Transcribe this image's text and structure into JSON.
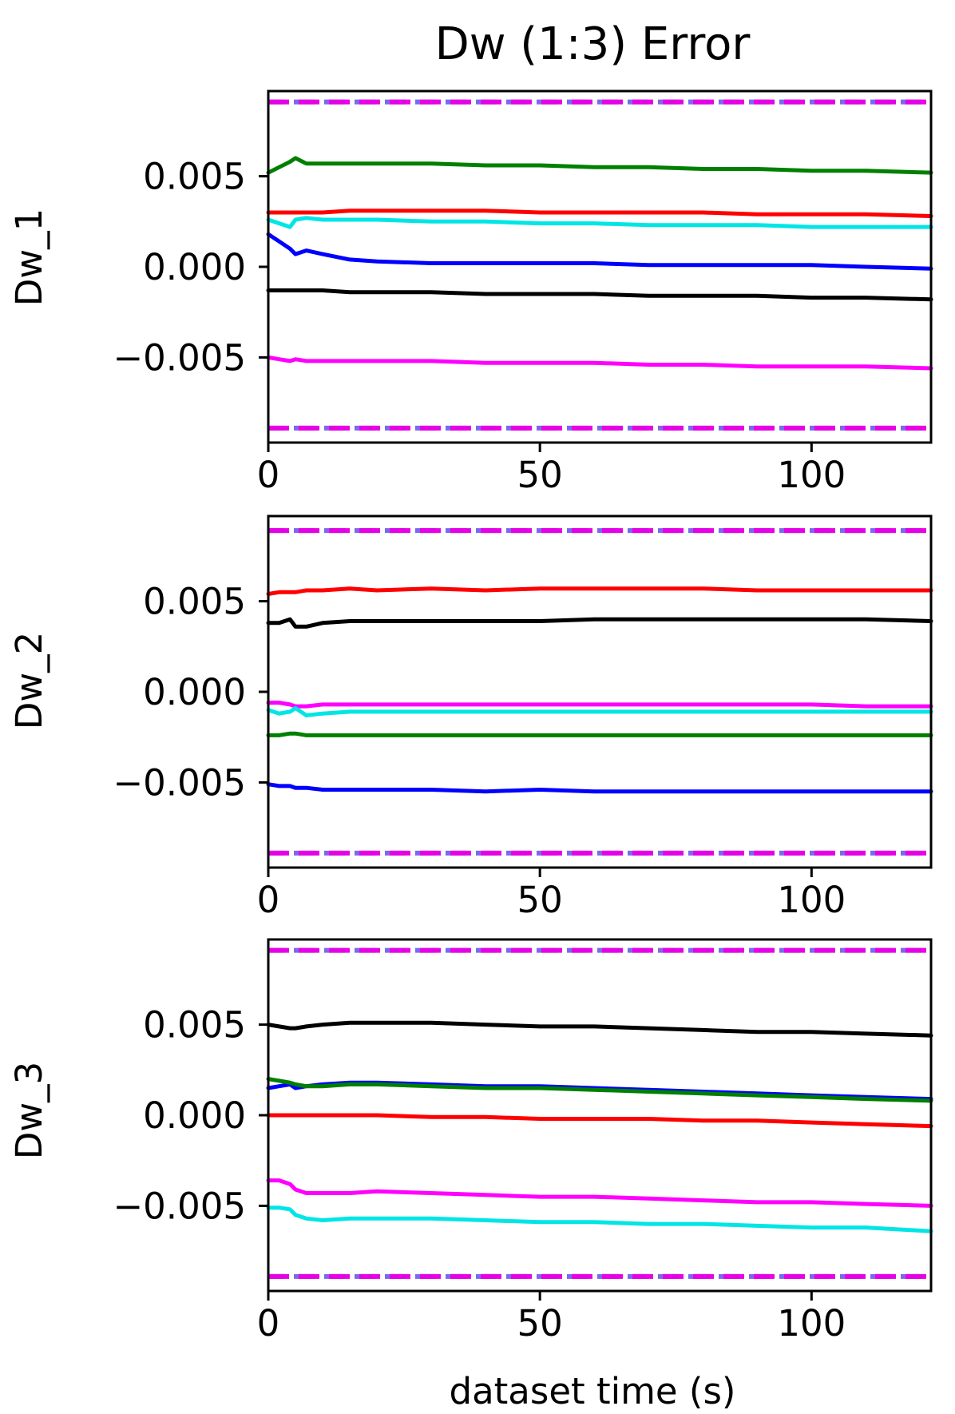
{
  "title": "Dw (1:3) Error",
  "xlabel": "dataset time (s)",
  "chart_data": [
    {
      "type": "line",
      "title": "Dw (1:3) Error",
      "ylabel": "Dw_1",
      "xlabel": "",
      "xlim": [
        0,
        122
      ],
      "ylim": [
        -0.0097,
        0.0097
      ],
      "xticks": [
        0,
        50,
        100
      ],
      "xtick_labels": [
        "0",
        "50",
        "100"
      ],
      "yticks": [
        -0.005,
        0.0,
        0.005
      ],
      "ytick_labels": [
        "−0.005",
        "0.000",
        "0.005"
      ],
      "grid": false,
      "x": [
        0,
        2,
        4,
        5,
        7,
        10,
        15,
        20,
        30,
        40,
        50,
        60,
        70,
        80,
        90,
        100,
        110,
        122
      ],
      "series": [
        {
          "color": "#008000",
          "values": [
            0.0052,
            0.0055,
            0.0058,
            0.006,
            0.0057,
            0.0057,
            0.0057,
            0.0057,
            0.0057,
            0.0056,
            0.0056,
            0.0055,
            0.0055,
            0.0054,
            0.0054,
            0.0053,
            0.0053,
            0.0052
          ]
        },
        {
          "color": "#ff0000",
          "values": [
            0.003,
            0.003,
            0.003,
            0.003,
            0.003,
            0.003,
            0.0031,
            0.0031,
            0.0031,
            0.0031,
            0.003,
            0.003,
            0.003,
            0.003,
            0.0029,
            0.0029,
            0.0029,
            0.0028
          ]
        },
        {
          "color": "#00e5e5",
          "values": [
            0.0026,
            0.0024,
            0.0022,
            0.0026,
            0.0027,
            0.0026,
            0.0026,
            0.0026,
            0.0025,
            0.0025,
            0.0024,
            0.0024,
            0.0023,
            0.0023,
            0.0023,
            0.0022,
            0.0022,
            0.0022
          ]
        },
        {
          "color": "#0000ff",
          "values": [
            0.0018,
            0.0014,
            0.001,
            0.0007,
            0.0009,
            0.0007,
            0.0004,
            0.0003,
            0.0002,
            0.0002,
            0.0002,
            0.0002,
            0.0001,
            0.0001,
            0.0001,
            0.0001,
            0.0,
            -0.0001
          ]
        },
        {
          "color": "#000000",
          "values": [
            -0.0013,
            -0.0013,
            -0.0013,
            -0.0013,
            -0.0013,
            -0.0013,
            -0.0014,
            -0.0014,
            -0.0014,
            -0.0015,
            -0.0015,
            -0.0015,
            -0.0016,
            -0.0016,
            -0.0016,
            -0.0017,
            -0.0017,
            -0.0018
          ]
        },
        {
          "color": "#ff00ff",
          "values": [
            -0.005,
            -0.0051,
            -0.0052,
            -0.0051,
            -0.0052,
            -0.0052,
            -0.0052,
            -0.0052,
            -0.0052,
            -0.0053,
            -0.0053,
            -0.0053,
            -0.0054,
            -0.0054,
            -0.0055,
            -0.0055,
            -0.0055,
            -0.0056
          ]
        }
      ],
      "bounds": [
        0.0091,
        -0.0089
      ]
    },
    {
      "type": "line",
      "ylabel": "Dw_2",
      "xlabel": "",
      "xlim": [
        0,
        122
      ],
      "ylim": [
        -0.0097,
        0.0097
      ],
      "xticks": [
        0,
        50,
        100
      ],
      "xtick_labels": [
        "0",
        "50",
        "100"
      ],
      "yticks": [
        -0.005,
        0.0,
        0.005
      ],
      "ytick_labels": [
        "−0.005",
        "0.000",
        "0.005"
      ],
      "grid": false,
      "x": [
        0,
        2,
        4,
        5,
        7,
        10,
        15,
        20,
        30,
        40,
        50,
        60,
        70,
        80,
        90,
        100,
        110,
        122
      ],
      "series": [
        {
          "color": "#ff0000",
          "values": [
            0.0054,
            0.0055,
            0.0055,
            0.0055,
            0.0056,
            0.0056,
            0.0057,
            0.0056,
            0.0057,
            0.0056,
            0.0057,
            0.0057,
            0.0057,
            0.0057,
            0.0056,
            0.0056,
            0.0056,
            0.0056
          ]
        },
        {
          "color": "#000000",
          "values": [
            0.0038,
            0.0038,
            0.004,
            0.0036,
            0.0036,
            0.0038,
            0.0039,
            0.0039,
            0.0039,
            0.0039,
            0.0039,
            0.004,
            0.004,
            0.004,
            0.004,
            0.004,
            0.004,
            0.0039
          ]
        },
        {
          "color": "#ff00ff",
          "values": [
            -0.0006,
            -0.0006,
            -0.0007,
            -0.0008,
            -0.0008,
            -0.0007,
            -0.0007,
            -0.0007,
            -0.0007,
            -0.0007,
            -0.0007,
            -0.0007,
            -0.0007,
            -0.0007,
            -0.0007,
            -0.0007,
            -0.0008,
            -0.0008
          ]
        },
        {
          "color": "#00e5e5",
          "values": [
            -0.001,
            -0.0012,
            -0.0011,
            -0.0009,
            -0.0013,
            -0.0012,
            -0.0011,
            -0.0011,
            -0.0011,
            -0.0011,
            -0.0011,
            -0.0011,
            -0.0011,
            -0.0011,
            -0.0011,
            -0.0011,
            -0.0011,
            -0.0011
          ]
        },
        {
          "color": "#008000",
          "values": [
            -0.0024,
            -0.0024,
            -0.0023,
            -0.0023,
            -0.0024,
            -0.0024,
            -0.0024,
            -0.0024,
            -0.0024,
            -0.0024,
            -0.0024,
            -0.0024,
            -0.0024,
            -0.0024,
            -0.0024,
            -0.0024,
            -0.0024,
            -0.0024
          ]
        },
        {
          "color": "#0000ff",
          "values": [
            -0.0051,
            -0.0052,
            -0.0052,
            -0.0053,
            -0.0053,
            -0.0054,
            -0.0054,
            -0.0054,
            -0.0054,
            -0.0055,
            -0.0054,
            -0.0055,
            -0.0055,
            -0.0055,
            -0.0055,
            -0.0055,
            -0.0055,
            -0.0055
          ]
        }
      ],
      "bounds": [
        0.0089,
        -0.0089
      ]
    },
    {
      "type": "line",
      "ylabel": "Dw_3",
      "xlabel": "dataset time (s)",
      "xlim": [
        0,
        122
      ],
      "ylim": [
        -0.0097,
        0.0097
      ],
      "xticks": [
        0,
        50,
        100
      ],
      "xtick_labels": [
        "0",
        "50",
        "100"
      ],
      "yticks": [
        -0.005,
        0.0,
        0.005
      ],
      "ytick_labels": [
        "−0.005",
        "0.000",
        "0.005"
      ],
      "grid": false,
      "x": [
        0,
        2,
        4,
        5,
        7,
        10,
        15,
        20,
        30,
        40,
        50,
        60,
        70,
        80,
        90,
        100,
        110,
        122
      ],
      "series": [
        {
          "color": "#000000",
          "values": [
            0.005,
            0.0049,
            0.0048,
            0.0048,
            0.0049,
            0.005,
            0.0051,
            0.0051,
            0.0051,
            0.005,
            0.0049,
            0.0049,
            0.0048,
            0.0047,
            0.0046,
            0.0046,
            0.0045,
            0.0044
          ]
        },
        {
          "color": "#0000ff",
          "values": [
            0.0015,
            0.0016,
            0.0017,
            0.0015,
            0.0016,
            0.0017,
            0.0018,
            0.0018,
            0.0017,
            0.0016,
            0.0016,
            0.0015,
            0.0014,
            0.0013,
            0.0012,
            0.0011,
            0.001,
            0.0009
          ]
        },
        {
          "color": "#008000",
          "values": [
            0.002,
            0.0019,
            0.0018,
            0.0017,
            0.0016,
            0.0016,
            0.0017,
            0.0017,
            0.0016,
            0.0015,
            0.0015,
            0.0014,
            0.0013,
            0.0012,
            0.0011,
            0.001,
            0.0009,
            0.0008
          ]
        },
        {
          "color": "#ff0000",
          "values": [
            0.0,
            0.0,
            0.0,
            0.0,
            0.0,
            0.0,
            0.0,
            0.0,
            -0.0001,
            -0.0001,
            -0.0002,
            -0.0002,
            -0.0002,
            -0.0003,
            -0.0003,
            -0.0004,
            -0.0005,
            -0.0006
          ]
        },
        {
          "color": "#ff00ff",
          "values": [
            -0.0036,
            -0.0036,
            -0.0038,
            -0.0041,
            -0.0043,
            -0.0043,
            -0.0043,
            -0.0042,
            -0.0043,
            -0.0044,
            -0.0045,
            -0.0045,
            -0.0046,
            -0.0047,
            -0.0048,
            -0.0048,
            -0.0049,
            -0.005
          ]
        },
        {
          "color": "#00e5e5",
          "values": [
            -0.0051,
            -0.0051,
            -0.0052,
            -0.0055,
            -0.0057,
            -0.0058,
            -0.0057,
            -0.0057,
            -0.0057,
            -0.0058,
            -0.0059,
            -0.0059,
            -0.006,
            -0.006,
            -0.0061,
            -0.0062,
            -0.0062,
            -0.0064
          ]
        }
      ],
      "bounds": [
        0.0091,
        -0.0089
      ]
    }
  ]
}
